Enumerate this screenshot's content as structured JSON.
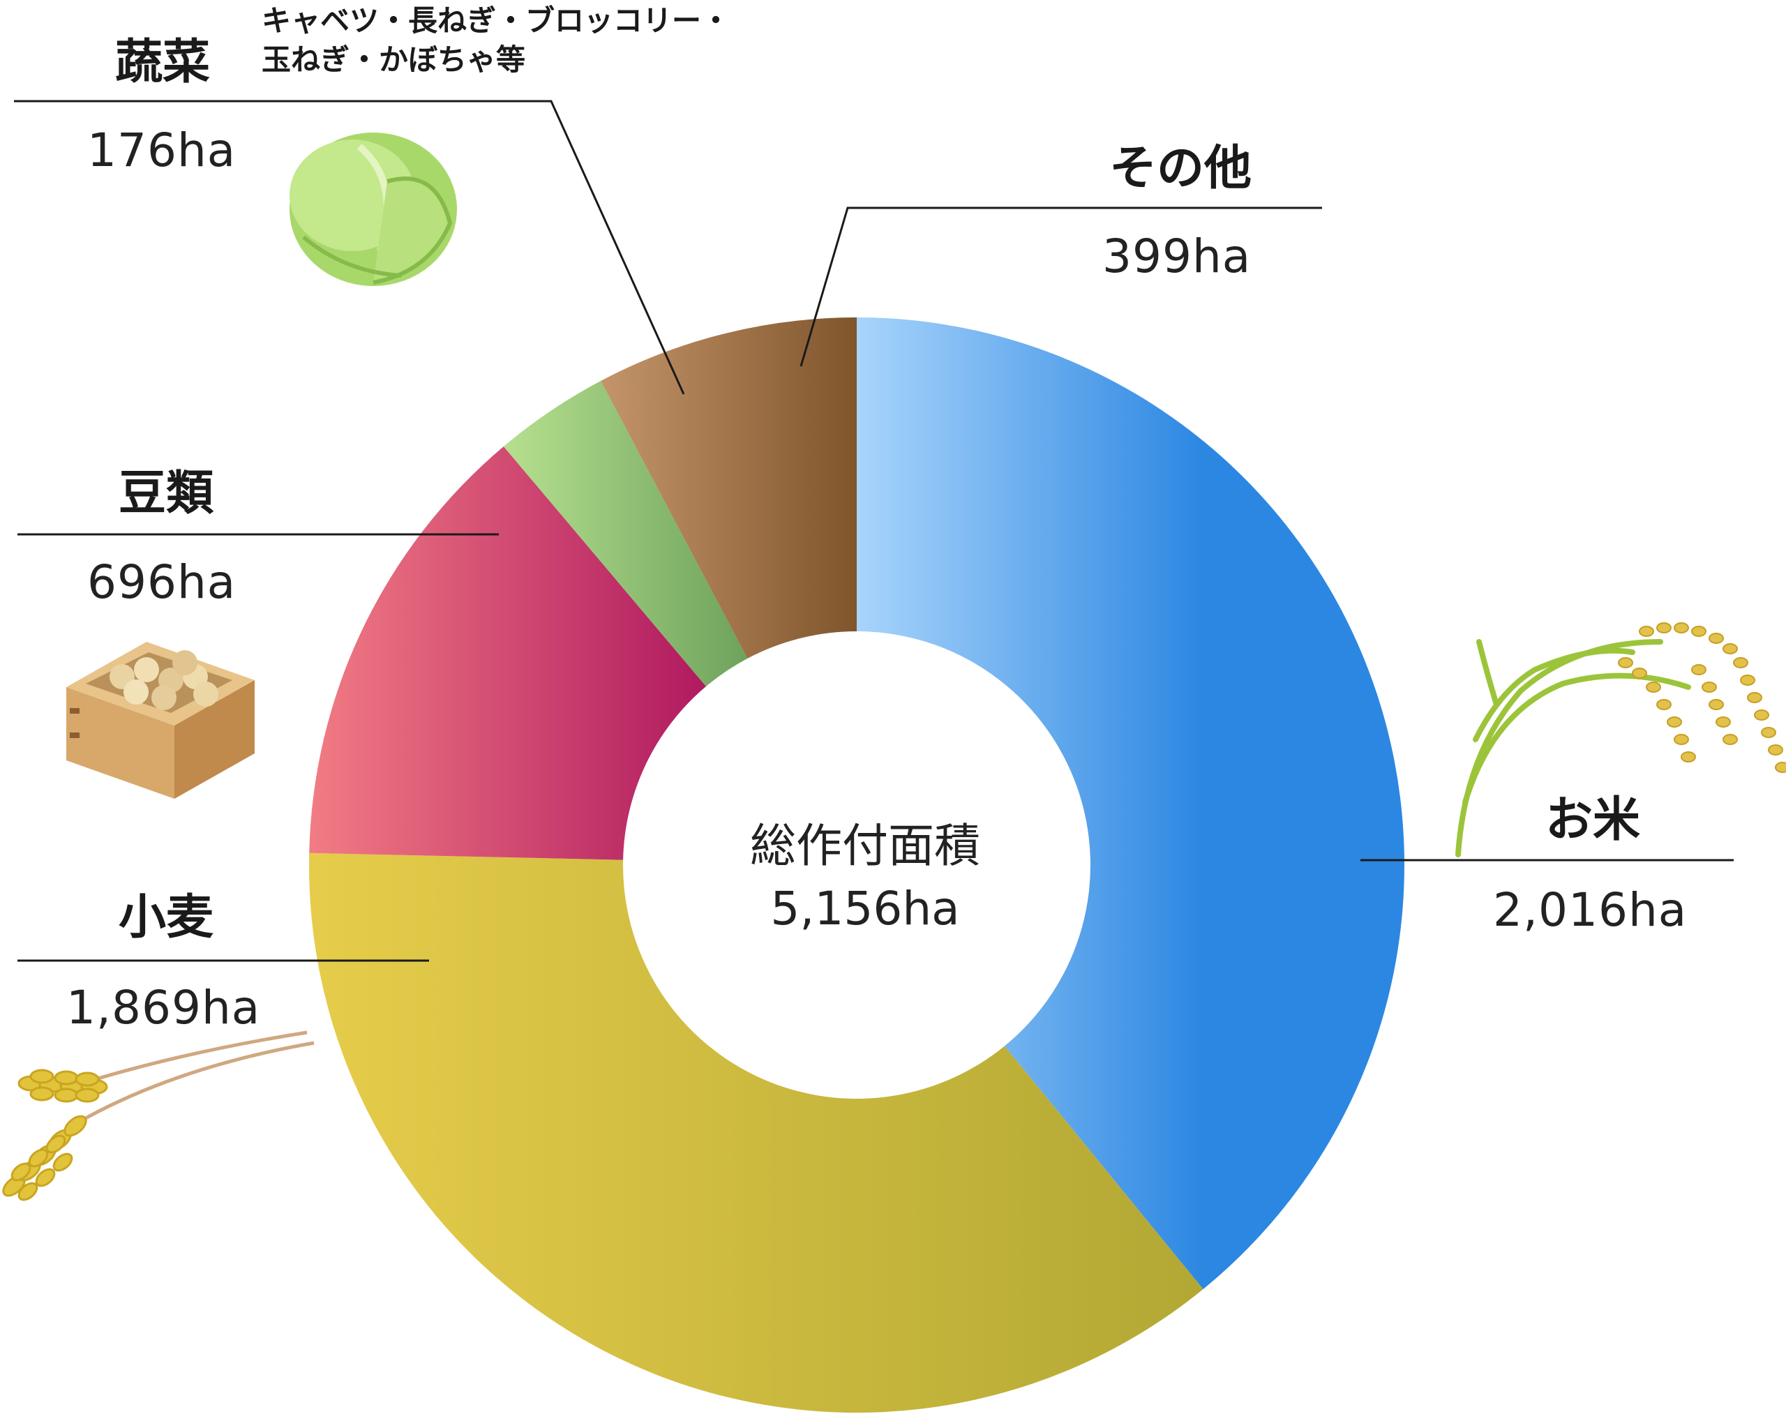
{
  "chart_data": {
    "type": "pie",
    "center": {
      "title": "総作付面積",
      "total": "5,156ha"
    },
    "slices": [
      {
        "name": "お米",
        "value": 2016,
        "value_label": "2,016ha",
        "colors": [
          "#a8d4fb",
          "#2c87e2"
        ]
      },
      {
        "name": "小麦",
        "value": 1869,
        "value_label": "1,869ha",
        "colors": [
          "#e6cc4a",
          "#b2a834"
        ]
      },
      {
        "name": "豆類",
        "value": 696,
        "value_label": "696ha",
        "colors": [
          "#f27c84",
          "#b01a60"
        ]
      },
      {
        "name": "蔬菜",
        "value": 176,
        "value_label": "176ha",
        "note": [
          "キャベツ・長ねぎ・ブロッコリー・",
          "玉ねぎ・かぼちゃ等"
        ],
        "colors": [
          "#b6e08f",
          "#6ea25c"
        ]
      },
      {
        "name": "その他",
        "value": 399,
        "value_label": "399ha",
        "colors": [
          "#c4956a",
          "#80552c"
        ]
      }
    ]
  },
  "icons": [
    "rice-icon",
    "wheat-icon",
    "soybeans-icon",
    "cabbage-icon"
  ]
}
